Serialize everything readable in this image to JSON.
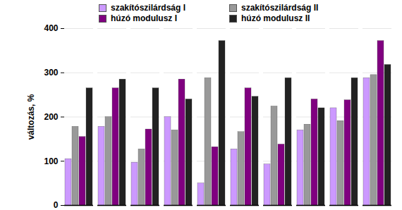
{
  "chart_data": {
    "type": "bar",
    "categories": [
      null,
      null,
      null,
      null,
      null,
      null,
      null,
      null,
      null,
      null
    ],
    "series": [
      {
        "name": "szakítószilárdság I",
        "color": "#cc99ff",
        "values": [
          105,
          178,
          97,
          200,
          50,
          127,
          93,
          170,
          220,
          288
        ]
      },
      {
        "name": "szakítószilárdság II",
        "color": "#999999",
        "values": [
          178,
          200,
          127,
          170,
          288,
          166,
          224,
          183,
          191,
          295
        ]
      },
      {
        "name": "húzó modulusz I",
        "color": "#800080",
        "values": [
          155,
          265,
          172,
          285,
          132,
          265,
          138,
          240,
          238,
          372
        ]
      },
      {
        "name": "húzó modulusz II",
        "color": "#222222",
        "values": [
          265,
          285,
          265,
          240,
          372,
          246,
          288,
          220,
          288,
          318
        ]
      }
    ],
    "y_label": "változás, %",
    "ylim": [
      0,
      400
    ],
    "yticks": [
      0,
      100,
      200,
      300,
      400
    ],
    "grid": true,
    "legend": "top",
    "tick_labels": "y"
  }
}
